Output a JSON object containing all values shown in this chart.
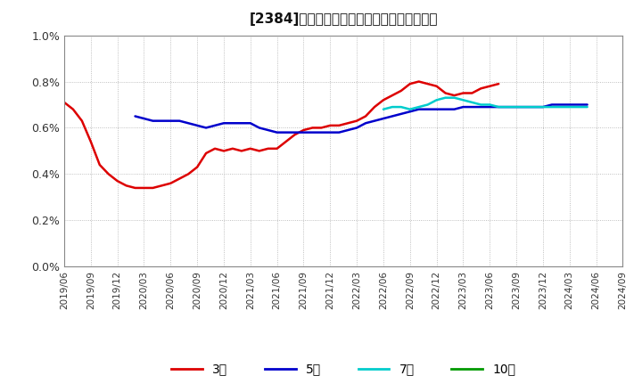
{
  "title": "[2384]　経常利益マージンの標準偏差の推移",
  "background_color": "#ffffff",
  "plot_bg_color": "#ffffff",
  "grid_color": "#999999",
  "ylim": [
    0.0,
    0.01
  ],
  "yticks": [
    0.0,
    0.002,
    0.004,
    0.006,
    0.008,
    0.01
  ],
  "ytick_labels": [
    "0.0%",
    "0.2%",
    "0.4%",
    "0.6%",
    "0.8%",
    "1.0%"
  ],
  "legend_entries": [
    "3年",
    "5年",
    "7年",
    "10年"
  ],
  "legend_colors": [
    "#dd0000",
    "#0000cc",
    "#00cccc",
    "#009900"
  ],
  "series_3year": {
    "color": "#dd0000",
    "linewidth": 1.8,
    "y": [
      0.0071,
      0.0068,
      0.0063,
      0.0054,
      0.0044,
      0.004,
      0.0037,
      0.0035,
      0.0034,
      0.0034,
      0.0034,
      0.0035,
      0.0036,
      0.0038,
      0.004,
      0.0043,
      0.0049,
      0.0051,
      0.005,
      0.0051,
      0.005,
      0.0051,
      0.005,
      0.0051,
      0.0051,
      0.0054,
      0.0057,
      0.0059,
      0.006,
      0.006,
      0.0061,
      0.0061,
      0.0062,
      0.0063,
      0.0065,
      0.0069,
      0.0072,
      0.0074,
      0.0076,
      0.0079,
      0.008,
      0.0079,
      0.0078,
      0.0075,
      0.0074,
      0.0075,
      0.0075,
      0.0077,
      0.0078,
      0.0079,
      null,
      null,
      null,
      null,
      null,
      null,
      null,
      null,
      null,
      null,
      null,
      null,
      null,
      null
    ]
  },
  "series_5year": {
    "color": "#0000cc",
    "linewidth": 1.8,
    "y": [
      null,
      null,
      null,
      null,
      null,
      null,
      null,
      null,
      0.0065,
      0.0064,
      0.0063,
      0.0063,
      0.0063,
      0.0063,
      0.0062,
      0.0061,
      0.006,
      0.0061,
      0.0062,
      0.0062,
      0.0062,
      0.0062,
      0.006,
      0.0059,
      0.0058,
      0.0058,
      0.0058,
      0.0058,
      0.0058,
      0.0058,
      0.0058,
      0.0058,
      0.0059,
      0.006,
      0.0062,
      0.0063,
      0.0064,
      0.0065,
      0.0066,
      0.0067,
      0.0068,
      0.0068,
      0.0068,
      0.0068,
      0.0068,
      0.0069,
      0.0069,
      0.0069,
      0.0069,
      0.0069,
      0.0069,
      0.0069,
      0.0069,
      0.0069,
      0.0069,
      0.007,
      0.007,
      0.007,
      0.007,
      0.007,
      null,
      null,
      null,
      null
    ]
  },
  "series_7year": {
    "color": "#00cccc",
    "linewidth": 1.8,
    "y": [
      null,
      null,
      null,
      null,
      null,
      null,
      null,
      null,
      null,
      null,
      null,
      null,
      null,
      null,
      null,
      null,
      null,
      null,
      null,
      null,
      null,
      null,
      null,
      null,
      null,
      null,
      null,
      null,
      null,
      null,
      null,
      null,
      null,
      null,
      null,
      null,
      0.0068,
      0.0069,
      0.0069,
      0.0068,
      0.0069,
      0.007,
      0.0072,
      0.0073,
      0.0073,
      0.0072,
      0.0071,
      0.007,
      0.007,
      0.0069,
      0.0069,
      0.0069,
      0.0069,
      0.0069,
      0.0069,
      0.0069,
      0.0069,
      0.0069,
      0.0069,
      0.0069,
      null,
      null,
      null,
      null
    ]
  },
  "series_10year": {
    "color": "#009900",
    "linewidth": 1.8,
    "y": [
      null,
      null,
      null,
      null,
      null,
      null,
      null,
      null,
      null,
      null,
      null,
      null,
      null,
      null,
      null,
      null,
      null,
      null,
      null,
      null,
      null,
      null,
      null,
      null,
      null,
      null,
      null,
      null,
      null,
      null,
      null,
      null,
      null,
      null,
      null,
      null,
      null,
      null,
      null,
      null,
      null,
      null,
      null,
      null,
      null,
      null,
      null,
      null,
      null,
      null,
      null,
      null,
      null,
      null,
      null,
      null,
      null,
      null,
      null,
      null,
      null,
      null,
      null,
      null
    ]
  },
  "n_points": 64,
  "xtick_positions": [
    0,
    3,
    6,
    9,
    12,
    15,
    18,
    21,
    24,
    27,
    30,
    33,
    36,
    39,
    42,
    45,
    48,
    51,
    54,
    57,
    60,
    63
  ],
  "xtick_labels": [
    "2019/06",
    "2019/09",
    "2019/12",
    "2020/03",
    "2020/06",
    "2020/09",
    "2020/12",
    "2021/03",
    "2021/06",
    "2021/09",
    "2021/12",
    "2022/03",
    "2022/06",
    "2022/09",
    "2022/12",
    "2023/03",
    "2023/06",
    "2023/09",
    "2023/12",
    "2024/03",
    "2024/06",
    "2024/09"
  ]
}
